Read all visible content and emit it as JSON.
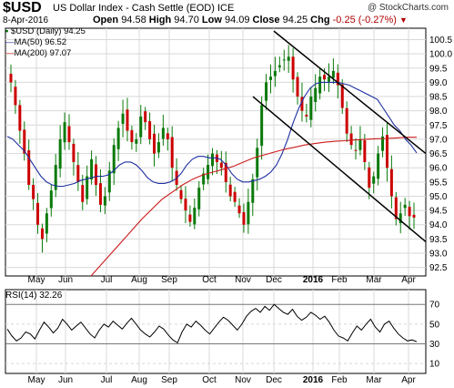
{
  "header": {
    "symbol": "$USD",
    "description": "US Dollar Index - Cash Settle (EOD) ICE",
    "brand": "@ StockCharts.com",
    "date": "8-Apr-2016",
    "open_label": "Open",
    "open": "94.58",
    "high_label": "High",
    "high": "94.70",
    "low_label": "Low",
    "low": "94.09",
    "close_label": "Close",
    "close": "94.25",
    "chg_label": "Chg",
    "chg": "-0.25 (-0.27%)",
    "chg_arrow": "▼"
  },
  "legend": {
    "price": "$USD (Daily) 94.25",
    "ma50": "MA(50) 96.52",
    "ma200": "MA(200) 97.07"
  },
  "rsi_legend": "RSI(14) 32.26",
  "colors": {
    "candle": "#0a7a0a",
    "candle_down": "#cc0000",
    "ma50": "#1d2fa0",
    "ma200": "#cc1a1a",
    "channel": "#000000",
    "grid": "#d8d8d8",
    "rsi_line": "#000000"
  },
  "chart_data": [
    {
      "type": "candlestick",
      "title": "$USD (Daily) 94.25",
      "x_ticks": [
        "May",
        "Jun",
        "Jul",
        "Aug",
        "Sep",
        "Oct",
        "Nov",
        "Dec",
        "2016",
        "Feb",
        "Mar",
        "Apr"
      ],
      "y_ticks": [
        92.5,
        93.0,
        93.5,
        94.0,
        94.5,
        95.0,
        95.5,
        96.0,
        96.5,
        97.0,
        97.5,
        98.0,
        98.5,
        99.0,
        99.5,
        100.0,
        100.5
      ],
      "ylim": [
        92.2,
        100.9
      ],
      "series": [
        {
          "name": "$USD (Daily) 94.25",
          "kind": "close_approx",
          "values": [
            99.0,
            98.2,
            97.3,
            96.5,
            95.4,
            94.9,
            94.0,
            93.5,
            94.4,
            95.2,
            96.1,
            97.0,
            97.6,
            96.9,
            96.2,
            95.5,
            94.8,
            95.7,
            96.3,
            95.4,
            94.7,
            95.0,
            95.9,
            96.8,
            97.4,
            97.9,
            97.3,
            96.9,
            97.0,
            97.8,
            97.6,
            97.0,
            96.5,
            96.9,
            97.4,
            97.0,
            96.0,
            95.4,
            94.9,
            94.5,
            94.1,
            94.6,
            95.3,
            95.8,
            96.1,
            96.5,
            96.2,
            96.0,
            95.5,
            95.0,
            94.8,
            94.4,
            94.0,
            94.8,
            95.6,
            96.7,
            98.2,
            99.0,
            99.2,
            99.4,
            99.6,
            99.8,
            99.9,
            99.1,
            98.5,
            98.0,
            97.8,
            98.5,
            98.8,
            99.2,
            99.1,
            99.2,
            99.4,
            98.9,
            98.1,
            97.2,
            96.8,
            96.6,
            97.0,
            96.2,
            95.3,
            95.7,
            96.5,
            97.1,
            96.0,
            95.0,
            94.2,
            94.4,
            94.7,
            94.3,
            94.25
          ]
        },
        {
          "name": "MA(50) 96.52",
          "values": [
            97.1,
            97.0,
            96.8,
            96.6,
            96.3,
            96.0,
            95.7,
            95.5,
            95.4,
            95.35,
            95.35,
            95.4,
            95.45,
            95.55,
            95.6,
            95.65,
            95.7,
            95.7,
            95.75,
            95.9,
            96.1,
            96.2,
            96.2,
            96.1,
            95.9,
            95.65,
            95.5,
            95.45,
            95.45,
            95.5,
            95.6,
            95.8,
            96.1,
            96.3,
            96.4,
            96.4,
            96.35,
            96.35,
            96.3,
            96.1,
            95.8,
            95.6,
            95.5,
            95.5,
            95.55,
            95.6,
            95.7,
            95.85,
            96.1,
            96.5,
            97.0,
            97.6,
            98.1,
            98.5,
            98.8,
            98.95,
            99.0,
            99.0,
            99.0,
            99.0,
            98.95,
            98.9,
            98.8,
            98.7,
            98.6,
            98.5,
            98.4,
            98.1,
            97.8,
            97.5,
            97.3,
            97.0,
            96.8,
            96.52
          ]
        },
        {
          "name": "MA(200) 97.07",
          "values": [
            92.2,
            92.6,
            93.0,
            93.4,
            93.8,
            94.2,
            94.55,
            94.9,
            95.15,
            95.4,
            95.6,
            95.75,
            95.85,
            95.95,
            96.05,
            96.2,
            96.35,
            96.45,
            96.55,
            96.65,
            96.72,
            96.8,
            96.85,
            96.9,
            96.93,
            96.95,
            96.98,
            97.0,
            97.02,
            97.03,
            97.05,
            97.07,
            97.07
          ]
        }
      ]
    },
    {
      "type": "line",
      "title": "RSI(14) 32.26",
      "y_ticks": [
        10,
        30,
        50,
        70
      ],
      "ylim": [
        0,
        85
      ],
      "series": [
        {
          "name": "RSI(14) 32.26",
          "values": [
            45,
            38,
            33,
            36,
            42,
            40,
            35,
            44,
            52,
            47,
            41,
            46,
            55,
            50,
            44,
            48,
            52,
            46,
            40,
            36,
            44,
            50,
            47,
            53,
            49,
            45,
            51,
            56,
            50,
            44,
            40,
            37,
            42,
            48,
            45,
            39,
            34,
            31,
            42,
            50,
            47,
            53,
            49,
            44,
            40,
            46,
            52,
            57,
            54,
            49,
            44,
            50,
            58,
            63,
            66,
            62,
            68,
            64,
            70,
            66,
            62,
            60,
            65,
            58,
            54,
            57,
            62,
            59,
            55,
            58,
            52,
            44,
            38,
            36,
            33,
            41,
            48,
            44,
            50,
            55,
            47,
            42,
            50,
            53,
            46,
            40,
            36,
            33,
            34,
            32.26
          ]
        }
      ]
    }
  ]
}
